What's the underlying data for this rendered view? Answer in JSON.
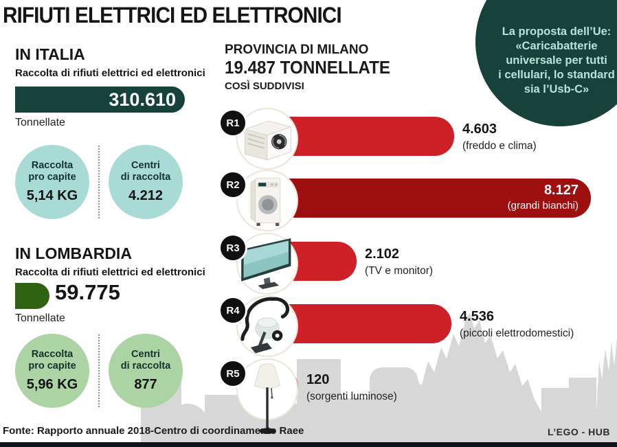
{
  "title": "RIFIUTI ELETTRICI ED ELETTRONICI",
  "italia": {
    "heading": "IN ITALIA",
    "subheading": "Raccolta di rifiuti elettrici ed elettronici",
    "total": "310.610",
    "unit": "Tonnellate",
    "bar_color": "#17413b",
    "circle_color": "#a9dbd6",
    "stats": [
      {
        "label": "Raccolta\npro capite",
        "value": "5,14 KG"
      },
      {
        "label": "Centri\ndi raccolta",
        "value": "4.212"
      }
    ]
  },
  "lombardia": {
    "heading": "IN LOMBARDIA",
    "subheading": "Raccolta di rifiuti elettrici ed elettronici",
    "total": "59.775",
    "unit": "Tonnellate",
    "bar_color": "#2f6313",
    "circle_color": "#abd3a3",
    "stats": [
      {
        "label": "Raccolta\npro capite",
        "value": "5,96 KG"
      },
      {
        "label": "Centri\ndi raccolta",
        "value": "877"
      }
    ]
  },
  "milano": {
    "heading": "PROVINCIA DI MILANO",
    "total": "19.487 TONNELLATE",
    "subheading": "COSÌ SUDDIVISI",
    "rows": [
      {
        "id": "R1",
        "value": "4.603",
        "value_num": 4603,
        "caption": "(freddo e clima)",
        "color": "#cd2027",
        "icon": "air-conditioner"
      },
      {
        "id": "R2",
        "value": "8.127",
        "value_num": 8127,
        "caption": "(grandi bianchi)",
        "color": "#9e0f10",
        "icon": "washing-machine"
      },
      {
        "id": "R3",
        "value": "2.102",
        "value_num": 2102,
        "caption": "(TV e monitor)",
        "color": "#cd2027",
        "icon": "tv-monitor"
      },
      {
        "id": "R4",
        "value": "4.536",
        "value_num": 4536,
        "caption": "(piccoli elettrodomestici)",
        "color": "#cd2027",
        "icon": "vacuum-cleaner"
      },
      {
        "id": "R5",
        "value": "120",
        "value_num": 120,
        "caption": "(sorgenti luminose)",
        "color": "#cd2027",
        "icon": "floor-lamp"
      }
    ]
  },
  "proposal": {
    "text": "La proposta dell’Ue:\n«Caricabatterie\nuniversale per tutti\ni cellulari, lo standard\nsia l’Usb-C»",
    "bg": "#17413b",
    "fg": "#b7e3dd"
  },
  "footer": {
    "source": "Fonte: Rapporto annuale 2018-Centro di coordinamento Raee",
    "credit": "L’EGO - HUB"
  },
  "chart_data": {
    "type": "bar",
    "orientation": "horizontal",
    "title": "PROVINCIA DI MILANO — 19.487 TONNELLATE, COSÌ SUDDIVISI",
    "unit": "tonnellate",
    "categories": [
      "R1 — freddo e clima",
      "R2 — grandi bianchi",
      "R3 — TV e monitor",
      "R4 — piccoli elettrodomestici",
      "R5 — sorgenti luminose"
    ],
    "values": [
      4603,
      8127,
      2102,
      4536,
      120
    ],
    "totals": {
      "provincia_di_milano_tonnellate": 19487,
      "italia": {
        "raccolta_tonnellate": 310610,
        "raccolta_pro_capite_kg": "5,14 KG",
        "centri_di_raccolta": 4212
      },
      "lombardia": {
        "raccolta_tonnellate": 59775,
        "raccolta_pro_capite_kg": "5,96 KG",
        "centri_di_raccolta": 877
      }
    },
    "legend_position": "none",
    "grid": false
  }
}
